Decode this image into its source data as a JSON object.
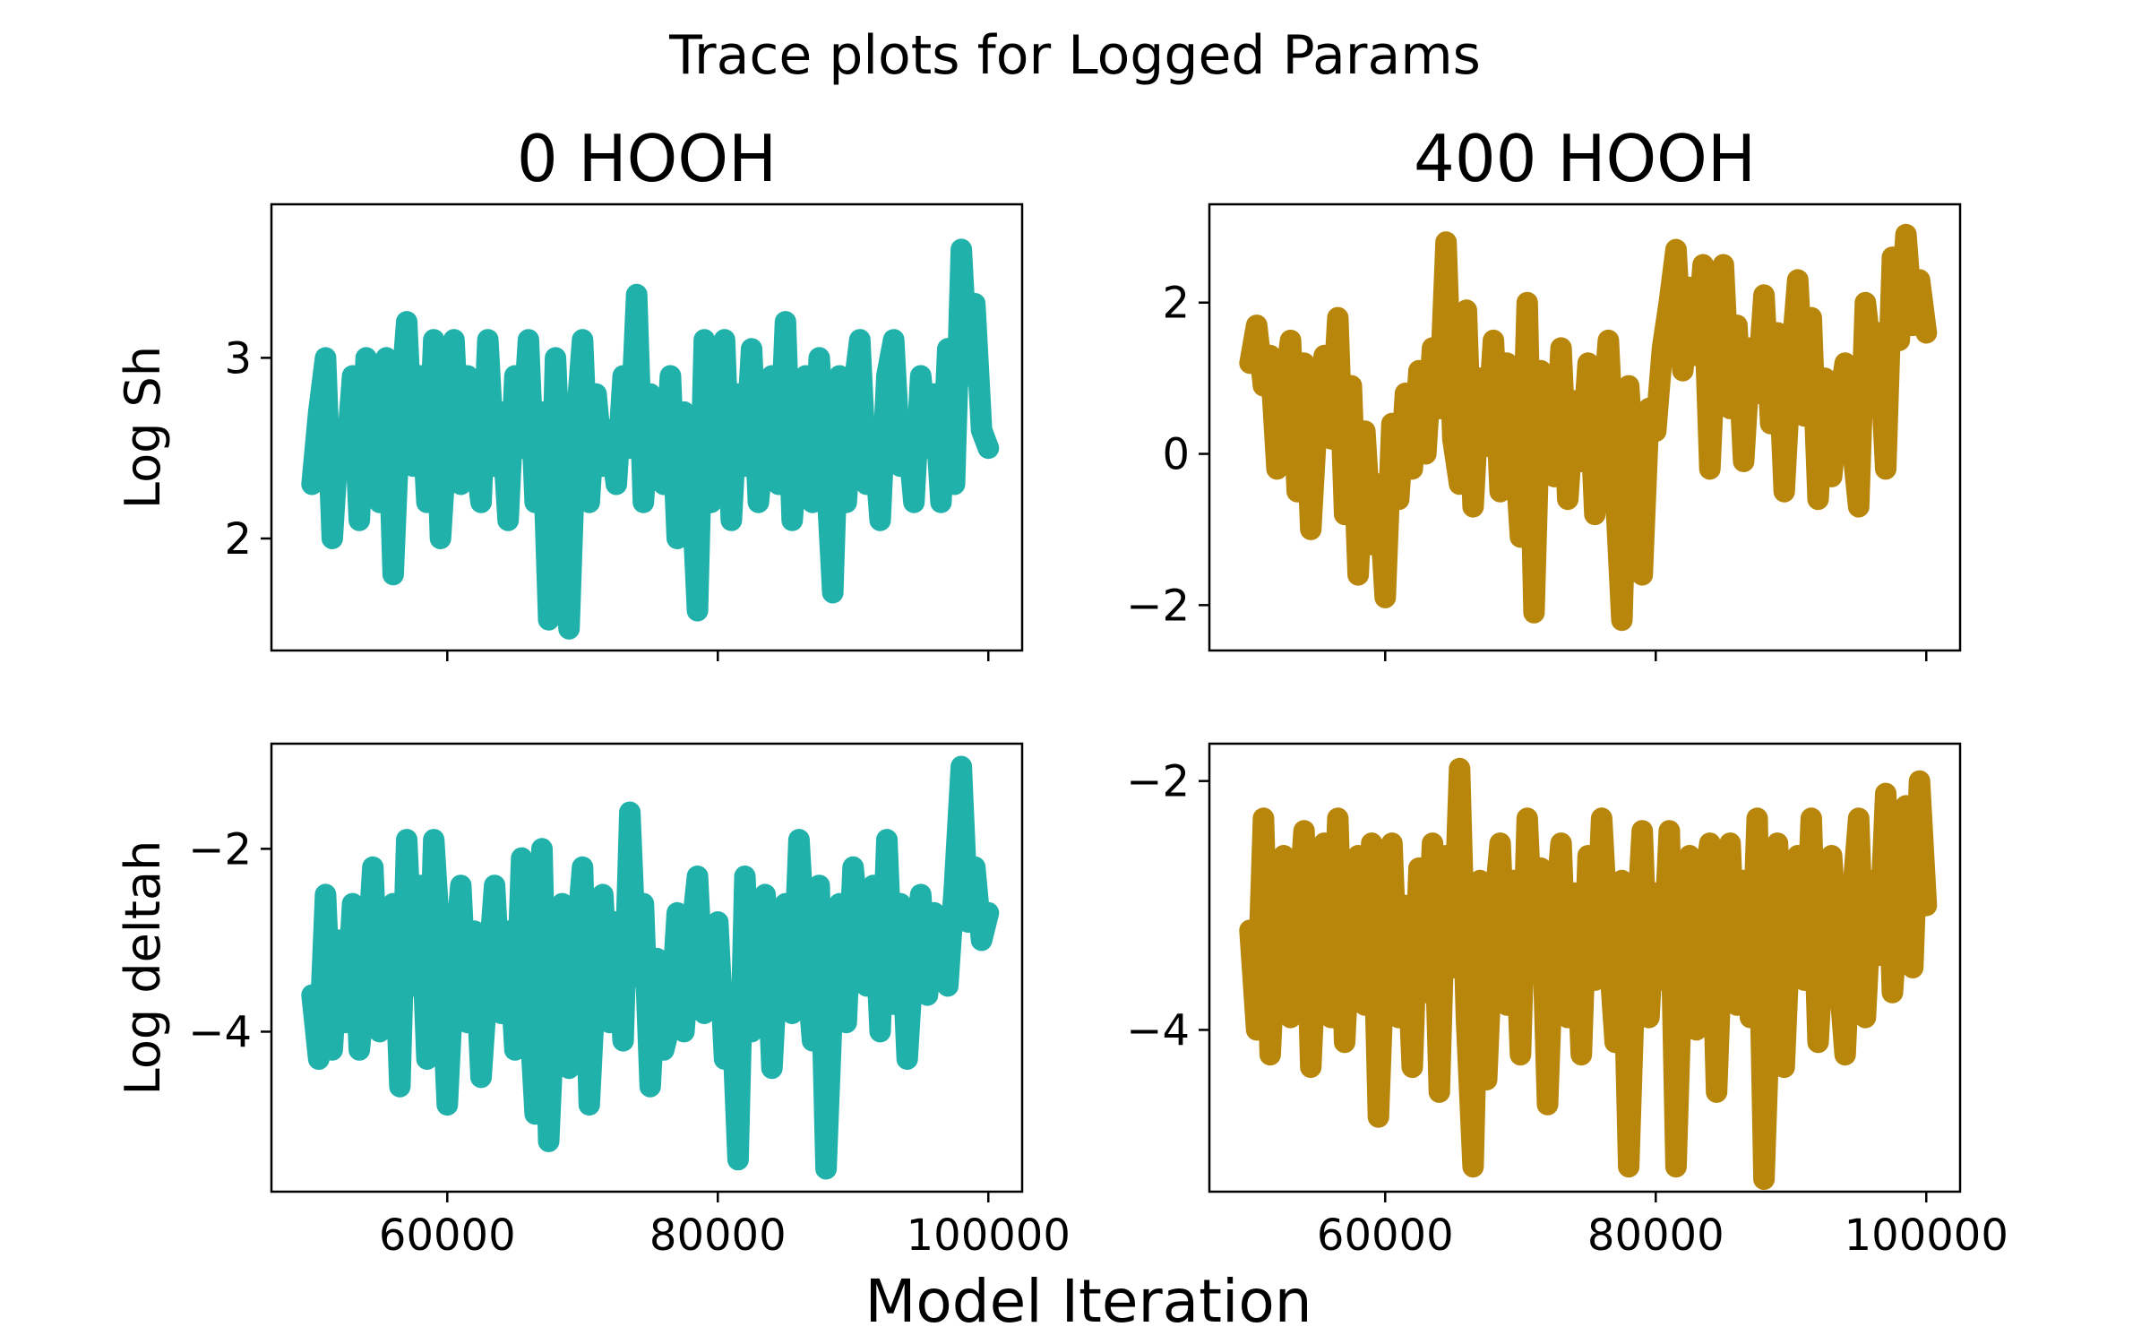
{
  "figure": {
    "suptitle": "Trace plots for Logged Params",
    "xlabel": "Model Iteration"
  },
  "colors": {
    "hooh0": "#20b2aa",
    "hooh400": "#b8860b"
  },
  "chart_data": [
    {
      "type": "line",
      "title": "0 HOOH",
      "ylabel": "Log Sh",
      "xlim": [
        47000,
        102500
      ],
      "ylim": [
        1.38,
        3.85
      ],
      "xticks": [
        60000,
        80000,
        100000
      ],
      "xtick_labels_visible": false,
      "yticks": [
        2,
        3
      ],
      "ytick_labels": [
        "2",
        "3"
      ],
      "color": "#20b2aa",
      "grid": false,
      "series": [
        {
          "x": [
            50000,
            50500,
            51000,
            51500,
            52000,
            52500,
            53000,
            53500,
            54000,
            54500,
            55000,
            55500,
            56000,
            56500,
            57000,
            57500,
            58000,
            58500,
            59000,
            59500,
            60000,
            60500,
            61000,
            61500,
            62000,
            62500,
            63000,
            63500,
            64000,
            64500,
            65000,
            65500,
            66000,
            66500,
            67000,
            67500,
            68000,
            68500,
            69000,
            69500,
            70000,
            70500,
            71000,
            71500,
            72000,
            72500,
            73000,
            73500,
            74000,
            74500,
            75000,
            75500,
            76000,
            76500,
            77000,
            77500,
            78000,
            78500,
            79000,
            79500,
            80000,
            80500,
            81000,
            81500,
            82000,
            82500,
            83000,
            83500,
            84000,
            84500,
            85000,
            85500,
            86000,
            86500,
            87000,
            87500,
            88000,
            88500,
            89000,
            89500,
            90000,
            90500,
            91000,
            91500,
            92000,
            92500,
            93000,
            93500,
            94000,
            94500,
            95000,
            95500,
            96000,
            96500,
            97000,
            97500,
            98000,
            98500,
            99000,
            99500,
            100000
          ],
          "y": [
            2.3,
            2.7,
            3.0,
            2.0,
            2.6,
            2.4,
            2.9,
            2.1,
            3.0,
            2.5,
            2.2,
            3.0,
            1.8,
            2.7,
            3.2,
            2.4,
            2.9,
            2.2,
            3.1,
            2.0,
            2.6,
            3.1,
            2.3,
            2.9,
            2.5,
            2.2,
            3.1,
            2.4,
            2.7,
            2.1,
            2.9,
            2.5,
            3.1,
            2.2,
            2.7,
            1.55,
            3.0,
            2.1,
            1.5,
            2.6,
            3.1,
            2.2,
            2.8,
            2.4,
            2.6,
            2.3,
            2.9,
            2.5,
            3.35,
            2.2,
            2.8,
            2.6,
            2.3,
            2.9,
            2.0,
            2.7,
            2.4,
            1.6,
            3.1,
            2.2,
            2.6,
            3.1,
            2.1,
            2.8,
            2.4,
            3.05,
            2.2,
            2.6,
            2.9,
            2.3,
            3.2,
            2.1,
            2.6,
            2.9,
            2.2,
            3.0,
            2.4,
            1.7,
            2.9,
            2.2,
            2.8,
            3.1,
            2.3,
            2.6,
            2.1,
            2.9,
            3.1,
            2.4,
            2.6,
            2.2,
            2.9,
            2.5,
            2.8,
            2.2,
            3.05,
            2.3,
            3.6,
            2.9,
            3.3,
            2.6,
            2.5
          ]
        }
      ]
    },
    {
      "type": "line",
      "title": "400 HOOH",
      "ylabel": "",
      "xlim": [
        47000,
        102500
      ],
      "ylim": [
        -2.6,
        3.3
      ],
      "xticks": [
        60000,
        80000,
        100000
      ],
      "xtick_labels_visible": false,
      "yticks": [
        -2,
        0,
        2
      ],
      "ytick_labels": [
        "−2",
        "0",
        "2"
      ],
      "color": "#b8860b",
      "grid": false,
      "series": [
        {
          "x": [
            50000,
            50500,
            51000,
            51500,
            52000,
            52500,
            53000,
            53500,
            54000,
            54500,
            55000,
            55500,
            56000,
            56500,
            57000,
            57500,
            58000,
            58500,
            59000,
            59500,
            60000,
            60500,
            61000,
            61500,
            62000,
            62500,
            63000,
            63500,
            64000,
            64500,
            65000,
            65500,
            66000,
            66500,
            67000,
            67500,
            68000,
            68500,
            69000,
            69500,
            70000,
            70500,
            71000,
            71500,
            72000,
            72500,
            73000,
            73500,
            74000,
            74500,
            75000,
            75500,
            76000,
            76500,
            77000,
            77500,
            78000,
            78500,
            79000,
            79500,
            80000,
            80500,
            81000,
            81500,
            82000,
            82500,
            83000,
            83500,
            84000,
            84500,
            85000,
            85500,
            86000,
            86500,
            87000,
            87500,
            88000,
            88500,
            89000,
            89500,
            90000,
            90500,
            91000,
            91500,
            92000,
            92500,
            93000,
            93500,
            94000,
            94500,
            95000,
            95500,
            96000,
            96500,
            97000,
            97500,
            98000,
            98500,
            99000,
            99500,
            100000
          ],
          "y": [
            1.2,
            1.7,
            0.9,
            1.3,
            -0.2,
            0.8,
            1.5,
            -0.5,
            1.2,
            -1.0,
            0.6,
            1.3,
            0.2,
            1.8,
            -0.8,
            0.9,
            -1.6,
            0.3,
            -1.2,
            -0.4,
            -1.9,
            0.4,
            -0.6,
            0.8,
            -0.2,
            1.1,
            0.0,
            1.4,
            0.6,
            2.8,
            0.2,
            -0.4,
            1.9,
            -0.7,
            1.0,
            0.1,
            1.5,
            -0.5,
            1.2,
            0.3,
            -1.1,
            2.0,
            -2.1,
            1.1,
            0.5,
            -0.3,
            1.4,
            -0.6,
            0.7,
            -0.1,
            1.2,
            -0.8,
            0.3,
            1.5,
            -0.4,
            -2.2,
            0.9,
            -0.5,
            -1.6,
            0.6,
            0.3,
            1.4,
            2.0,
            2.7,
            1.1,
            2.2,
            1.3,
            2.5,
            -0.2,
            1.8,
            2.5,
            0.6,
            1.7,
            -0.1,
            1.4,
            0.8,
            2.1,
            0.4,
            1.6,
            -0.5,
            1.2,
            2.3,
            0.5,
            1.8,
            -0.6,
            1.0,
            -0.3,
            0.6,
            1.2,
            0.2,
            -0.7,
            2.0,
            1.2,
            1.6,
            -0.2,
            2.6,
            1.5,
            2.9,
            1.7,
            2.3,
            1.6
          ]
        }
      ]
    },
    {
      "type": "line",
      "title": "",
      "ylabel": "Log deltah",
      "xlim": [
        47000,
        102500
      ],
      "ylim": [
        -5.75,
        -0.85
      ],
      "xticks": [
        60000,
        80000,
        100000
      ],
      "xtick_labels_visible": true,
      "xtick_labels": [
        "60000",
        "80000",
        "100000"
      ],
      "yticks": [
        -4,
        -2
      ],
      "ytick_labels": [
        "−4",
        "−2"
      ],
      "color": "#20b2aa",
      "grid": false,
      "series": [
        {
          "x": [
            50000,
            50500,
            51000,
            51500,
            52000,
            52500,
            53000,
            53500,
            54000,
            54500,
            55000,
            55500,
            56000,
            56500,
            57000,
            57500,
            58000,
            58500,
            59000,
            59500,
            60000,
            60500,
            61000,
            61500,
            62000,
            62500,
            63000,
            63500,
            64000,
            64500,
            65000,
            65500,
            66000,
            66500,
            67000,
            67500,
            68000,
            68500,
            69000,
            69500,
            70000,
            70500,
            71000,
            71500,
            72000,
            72500,
            73000,
            73500,
            74000,
            74500,
            75000,
            75500,
            76000,
            76500,
            77000,
            77500,
            78000,
            78500,
            79000,
            79500,
            80000,
            80500,
            81000,
            81500,
            82000,
            82500,
            83000,
            83500,
            84000,
            84500,
            85000,
            85500,
            86000,
            86500,
            87000,
            87500,
            88000,
            88500,
            89000,
            89500,
            90000,
            90500,
            91000,
            91500,
            92000,
            92500,
            93000,
            93500,
            94000,
            94500,
            95000,
            95500,
            96000,
            96500,
            97000,
            97500,
            98000,
            98500,
            99000,
            99500,
            100000
          ],
          "y": [
            -3.6,
            -4.3,
            -2.5,
            -4.2,
            -3.0,
            -3.9,
            -2.6,
            -4.2,
            -3.4,
            -2.2,
            -4.0,
            -3.2,
            -2.6,
            -4.6,
            -1.9,
            -3.5,
            -2.4,
            -4.3,
            -1.9,
            -3.1,
            -4.8,
            -3.3,
            -2.4,
            -3.9,
            -2.9,
            -4.5,
            -3.4,
            -2.4,
            -3.8,
            -2.9,
            -4.2,
            -2.1,
            -3.6,
            -4.9,
            -2.0,
            -5.2,
            -3.5,
            -2.6,
            -4.4,
            -3.1,
            -2.2,
            -4.8,
            -3.3,
            -2.5,
            -3.9,
            -2.8,
            -4.1,
            -1.6,
            -3.4,
            -2.6,
            -4.6,
            -3.2,
            -4.2,
            -3.9,
            -2.7,
            -4.0,
            -3.0,
            -2.3,
            -3.8,
            -3.2,
            -2.8,
            -4.3,
            -3.6,
            -5.4,
            -2.3,
            -4.0,
            -3.3,
            -2.5,
            -4.4,
            -3.0,
            -2.6,
            -3.8,
            -1.9,
            -3.2,
            -4.1,
            -2.4,
            -5.5,
            -3.6,
            -2.6,
            -3.9,
            -2.2,
            -3.0,
            -3.5,
            -2.4,
            -4.0,
            -1.9,
            -3.7,
            -2.6,
            -4.3,
            -3.1,
            -2.5,
            -3.6,
            -2.7,
            -2.9,
            -3.5,
            -2.4,
            -1.1,
            -2.8,
            -2.2,
            -3.0,
            -2.7
          ]
        }
      ]
    },
    {
      "type": "line",
      "title": "",
      "ylabel": "",
      "xlim": [
        47000,
        102500
      ],
      "ylim": [
        -5.3,
        -1.7
      ],
      "xticks": [
        60000,
        80000,
        100000
      ],
      "xtick_labels_visible": true,
      "xtick_labels": [
        "60000",
        "80000",
        "100000"
      ],
      "yticks": [
        -4,
        -2
      ],
      "ytick_labels": [
        "−4",
        "−2"
      ],
      "color": "#b8860b",
      "grid": false,
      "series": [
        {
          "x": [
            50000,
            50500,
            51000,
            51500,
            52000,
            52500,
            53000,
            53500,
            54000,
            54500,
            55000,
            55500,
            56000,
            56500,
            57000,
            57500,
            58000,
            58500,
            59000,
            59500,
            60000,
            60500,
            61000,
            61500,
            62000,
            62500,
            63000,
            63500,
            64000,
            64500,
            65000,
            65500,
            66000,
            66500,
            67000,
            67500,
            68000,
            68500,
            69000,
            69500,
            70000,
            70500,
            71000,
            71500,
            72000,
            72500,
            73000,
            73500,
            74000,
            74500,
            75000,
            75500,
            76000,
            76500,
            77000,
            77500,
            78000,
            78500,
            79000,
            79500,
            80000,
            80500,
            81000,
            81500,
            82000,
            82500,
            83000,
            83500,
            84000,
            84500,
            85000,
            85500,
            86000,
            86500,
            87000,
            87500,
            88000,
            88500,
            89000,
            89500,
            90000,
            90500,
            91000,
            91500,
            92000,
            92500,
            93000,
            93500,
            94000,
            94500,
            95000,
            95500,
            96000,
            96500,
            97000,
            97500,
            98000,
            98500,
            99000,
            99500,
            100000
          ],
          "y": [
            -3.2,
            -4.0,
            -2.3,
            -4.2,
            -3.0,
            -2.6,
            -3.9,
            -3.2,
            -2.4,
            -4.3,
            -3.1,
            -2.5,
            -3.9,
            -2.3,
            -4.1,
            -3.0,
            -2.6,
            -3.8,
            -2.5,
            -4.7,
            -3.2,
            -2.5,
            -3.9,
            -3.0,
            -4.3,
            -2.7,
            -3.7,
            -2.5,
            -4.5,
            -2.6,
            -3.5,
            -1.9,
            -3.9,
            -5.1,
            -2.8,
            -4.4,
            -3.1,
            -2.5,
            -3.8,
            -2.8,
            -4.2,
            -2.3,
            -3.5,
            -2.7,
            -4.6,
            -3.1,
            -2.5,
            -3.9,
            -2.9,
            -4.2,
            -2.6,
            -3.6,
            -2.3,
            -3.3,
            -4.1,
            -2.8,
            -5.1,
            -3.4,
            -2.4,
            -3.9,
            -2.9,
            -3.6,
            -2.4,
            -5.1,
            -3.3,
            -2.6,
            -4.0,
            -2.9,
            -2.5,
            -4.5,
            -3.0,
            -2.5,
            -3.8,
            -2.8,
            -3.9,
            -2.3,
            -5.2,
            -3.6,
            -2.5,
            -4.3,
            -3.0,
            -2.6,
            -3.6,
            -2.3,
            -4.1,
            -3.1,
            -2.6,
            -3.5,
            -4.2,
            -3.0,
            -2.3,
            -3.9,
            -2.8,
            -3.4,
            -2.1,
            -3.7,
            -2.9,
            -2.2,
            -3.5,
            -2.0,
            -3.0
          ]
        }
      ]
    }
  ]
}
